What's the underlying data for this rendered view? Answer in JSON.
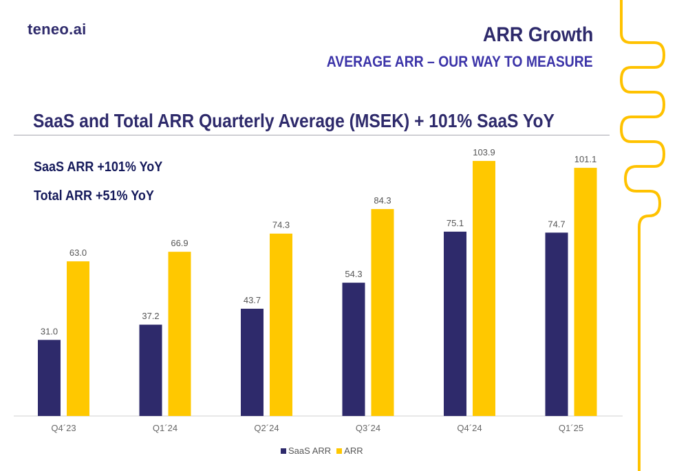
{
  "header": {
    "logo": "teneo.ai",
    "title": "ARR Growth",
    "subtitle": "AVERAGE ARR – OUR WAY TO MEASURE"
  },
  "section": {
    "title": "SaaS and Total ARR Quarterly Average (MSEK) + 101% SaaS YoY"
  },
  "kpis": {
    "saas": "SaaS ARR +101% YoY",
    "total": "Total ARR +51% YoY"
  },
  "colors": {
    "saas": "#2e2a6b",
    "arr": "#ffc800",
    "decoration": "#ffc200"
  },
  "chart_data": {
    "type": "bar",
    "categories": [
      "Q4´23",
      "Q1´24",
      "Q2´24",
      "Q3´24",
      "Q4´24",
      "Q1´25"
    ],
    "series": [
      {
        "name": "SaaS ARR",
        "values": [
          31.0,
          37.2,
          43.7,
          54.3,
          75.1,
          74.7
        ]
      },
      {
        "name": "ARR",
        "values": [
          63.0,
          66.9,
          74.3,
          84.3,
          103.9,
          101.1
        ]
      }
    ],
    "title": "SaaS and Total ARR Quarterly Average (MSEK) + 101% SaaS YoY",
    "xlabel": "",
    "ylabel": "",
    "ylim": [
      0,
      110
    ],
    "grid": false,
    "legend": "bottom-center"
  }
}
